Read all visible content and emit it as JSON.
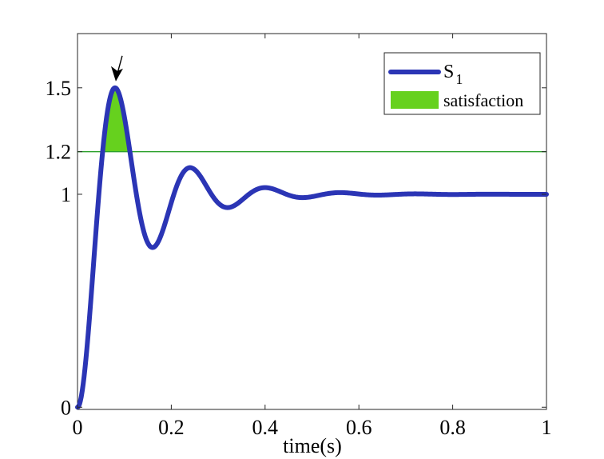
{
  "chart_data": {
    "type": "line",
    "title": "",
    "xlabel": "time(s)",
    "ylabel": "",
    "xlim": [
      0,
      1
    ],
    "ylim": [
      -0.0103,
      1.7546
    ],
    "grid": false,
    "x_ticks": [
      {
        "value": 0,
        "label": "0"
      },
      {
        "value": 0.2,
        "label": "0.2"
      },
      {
        "value": 0.4,
        "label": "0.4"
      },
      {
        "value": 0.6,
        "label": "0.6"
      },
      {
        "value": 0.8,
        "label": "0.8"
      },
      {
        "value": 1,
        "label": "1"
      }
    ],
    "y_ticks": [
      {
        "value": 0,
        "label": "0"
      },
      {
        "value": 1,
        "label": "1"
      },
      {
        "value": 1.2,
        "label": "1.2"
      },
      {
        "value": 1.5,
        "label": "1.5"
      }
    ],
    "series": [
      {
        "name": "S",
        "name_subscript": "1",
        "color": "#2b35b5",
        "model": {
          "type": "damped-second-order-step-response",
          "final_value": 1,
          "overshoot": 0.5,
          "peak_time": 0.08,
          "t_start": 0,
          "t_end": 1
        }
      }
    ],
    "threshold": {
      "value": 1.2,
      "color": "#2ca02c"
    },
    "fill": {
      "name": "satisfaction",
      "color": "#66d11e",
      "region": "series above threshold"
    },
    "annotation": {
      "type": "arrow",
      "target_x": 0.08,
      "target_y": 1.5,
      "color": "#000000"
    },
    "legend": {
      "position": "top-right"
    }
  }
}
